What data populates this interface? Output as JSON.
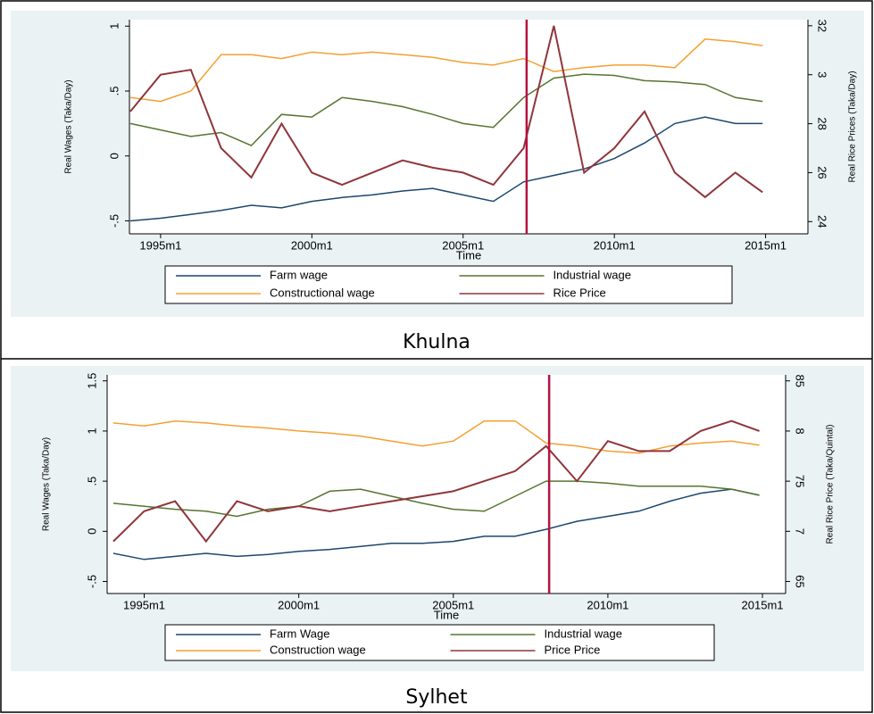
{
  "chart_data": [
    {
      "type": "line",
      "caption": "Khulna",
      "x_label": "Time",
      "y_label": "Real Wages (Taka/Day)",
      "y2_label": "Real Rice Prices (Taka/Day)",
      "x": [
        1994,
        1995,
        1996,
        1997,
        1998,
        1999,
        2000,
        2001,
        2002,
        2003,
        2004,
        2005,
        2006,
        2007,
        2008,
        2009,
        2010,
        2011,
        2012,
        2013,
        2014,
        2014.9
      ],
      "xlim": [
        1993.97,
        2016.4
      ],
      "xticks": [
        {
          "value": 1995,
          "label": "1995m1"
        },
        {
          "value": 2000,
          "label": "2000m1"
        },
        {
          "value": 2005,
          "label": "2005m1"
        },
        {
          "value": 2010,
          "label": "2010m1"
        },
        {
          "value": 2015,
          "label": "2015m1"
        }
      ],
      "ylim": [
        -0.6,
        1.05
      ],
      "yticks": [
        {
          "value": -0.5,
          "label": "-.5"
        },
        0,
        {
          "value": 0.5,
          "label": ".5"
        },
        1
      ],
      "y2lim": [
        23.5,
        32.25
      ],
      "y2ticks": [
        24,
        26,
        28,
        {
          "value": 30,
          "label": "3"
        },
        32
      ],
      "vline": {
        "x": 2007.1,
        "color": "#b5123e"
      },
      "series": [
        {
          "name": "Farm wage",
          "color": "#1a476f",
          "values": [
            -0.5,
            -0.48,
            -0.45,
            -0.42,
            -0.38,
            -0.4,
            -0.35,
            -0.32,
            -0.3,
            -0.27,
            -0.25,
            -0.3,
            -0.35,
            -0.2,
            -0.15,
            -0.1,
            -0.02,
            0.1,
            0.25,
            0.3,
            0.25,
            0.25
          ]
        },
        {
          "name": "Industrial wage",
          "color": "#55752f",
          "values": [
            0.25,
            0.2,
            0.15,
            0.18,
            0.08,
            0.32,
            0.3,
            0.45,
            0.42,
            0.38,
            0.32,
            0.25,
            0.22,
            0.45,
            0.6,
            0.63,
            0.62,
            0.58,
            0.57,
            0.55,
            0.45,
            0.42
          ]
        },
        {
          "name": "Constructional wage",
          "color": "#f5a031",
          "values": [
            0.45,
            0.42,
            0.5,
            0.78,
            0.78,
            0.75,
            0.8,
            0.78,
            0.8,
            0.78,
            0.76,
            0.72,
            0.7,
            0.75,
            0.65,
            0.68,
            0.7,
            0.7,
            0.68,
            0.9,
            0.88,
            0.85
          ]
        },
        {
          "name": "Rice Price",
          "color": "#90353b",
          "axis": "y2",
          "values": [
            28.5,
            30,
            30.2,
            27,
            25.8,
            28,
            26,
            25.5,
            26,
            26.5,
            26.2,
            26,
            25.5,
            27,
            32,
            26,
            27,
            28.5,
            26,
            25,
            26,
            25.2
          ]
        }
      ]
    },
    {
      "type": "line",
      "caption": "Sylhet",
      "x_label": "Time",
      "y_label": "Real Wages (Taka/Day)",
      "y2_label": "Real Rice Price (Taka/Quintal)",
      "x": [
        1994,
        1995,
        1996,
        1997,
        1998,
        1999,
        2000,
        2001,
        2002,
        2003,
        2004,
        2005,
        2006,
        2007,
        2008,
        2009,
        2010,
        2011,
        2012,
        2013,
        2014,
        2014.9
      ],
      "xlim": [
        1993.8,
        2015.75
      ],
      "xticks": [
        {
          "value": 1995,
          "label": "1995m1"
        },
        {
          "value": 2000,
          "label": "2000m1"
        },
        {
          "value": 2005,
          "label": "2005m1"
        },
        {
          "value": 2010,
          "label": "2010m1"
        },
        {
          "value": 2015,
          "label": "2015m1"
        }
      ],
      "ylim": [
        -0.62,
        1.56
      ],
      "yticks": [
        {
          "value": -0.5,
          "label": "-.5"
        },
        0,
        {
          "value": 0.5,
          "label": ".5"
        },
        1,
        {
          "value": 1.5,
          "label": "1.5"
        }
      ],
      "y2lim": [
        6.38,
        8.56
      ],
      "y2ticks": [
        {
          "value": 6.5,
          "label": "65"
        },
        7,
        {
          "value": 7.5,
          "label": "75"
        },
        8,
        {
          "value": 8.5,
          "label": "85"
        }
      ],
      "vline": {
        "x": 2008.1,
        "color": "#b5123e"
      },
      "series": [
        {
          "name": "Farm Wage",
          "color": "#1a476f",
          "values": [
            -0.22,
            -0.28,
            -0.25,
            -0.22,
            -0.25,
            -0.23,
            -0.2,
            -0.18,
            -0.15,
            -0.12,
            -0.12,
            -0.1,
            -0.05,
            -0.05,
            0.02,
            0.1,
            0.15,
            0.2,
            0.3,
            0.38,
            0.42,
            0.36
          ]
        },
        {
          "name": "Industrial wage",
          "color": "#55752f",
          "values": [
            0.28,
            0.25,
            0.22,
            0.2,
            0.15,
            0.22,
            0.25,
            0.4,
            0.42,
            0.35,
            0.28,
            0.22,
            0.2,
            0.35,
            0.5,
            0.5,
            0.48,
            0.45,
            0.45,
            0.45,
            0.42,
            0.36
          ]
        },
        {
          "name": "Construction wage",
          "color": "#f5a031",
          "values": [
            1.08,
            1.05,
            1.1,
            1.08,
            1.05,
            1.03,
            1.0,
            0.98,
            0.95,
            0.9,
            0.85,
            0.9,
            1.1,
            1.1,
            0.88,
            0.85,
            0.8,
            0.78,
            0.85,
            0.88,
            0.9,
            0.86
          ]
        },
        {
          "name": "Price Price",
          "color": "#90353b",
          "axis": "y2",
          "values": [
            6.9,
            7.2,
            7.3,
            6.9,
            7.3,
            7.2,
            7.25,
            7.2,
            7.25,
            7.3,
            7.35,
            7.4,
            7.5,
            7.6,
            7.85,
            7.5,
            7.9,
            7.8,
            7.8,
            8.0,
            8.1,
            8.0
          ]
        }
      ]
    }
  ]
}
